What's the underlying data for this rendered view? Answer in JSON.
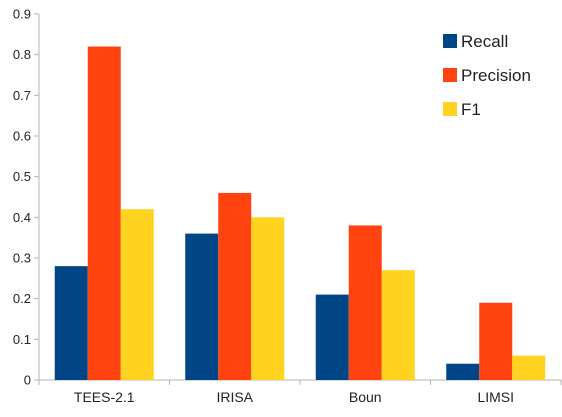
{
  "chart_data": {
    "type": "bar",
    "categories": [
      "TEES-2.1",
      "IRISA",
      "Boun",
      "LIMSI"
    ],
    "series": [
      {
        "name": "Recall",
        "values": [
          0.28,
          0.36,
          0.21,
          0.04
        ],
        "color": "#004586"
      },
      {
        "name": "Precision",
        "values": [
          0.82,
          0.46,
          0.38,
          0.19
        ],
        "color": "#ff420e"
      },
      {
        "name": "F1",
        "values": [
          0.42,
          0.4,
          0.27,
          0.06
        ],
        "color": "#ffd320"
      }
    ],
    "yticks": [
      "0",
      "0.1",
      "0.2",
      "0.3",
      "0.4",
      "0.5",
      "0.6",
      "0.7",
      "0.8",
      "0.9"
    ],
    "ylim": [
      0,
      0.9
    ],
    "grid": false,
    "legend_position": "top-right",
    "title": "",
    "xlabel": "",
    "ylabel": ""
  }
}
